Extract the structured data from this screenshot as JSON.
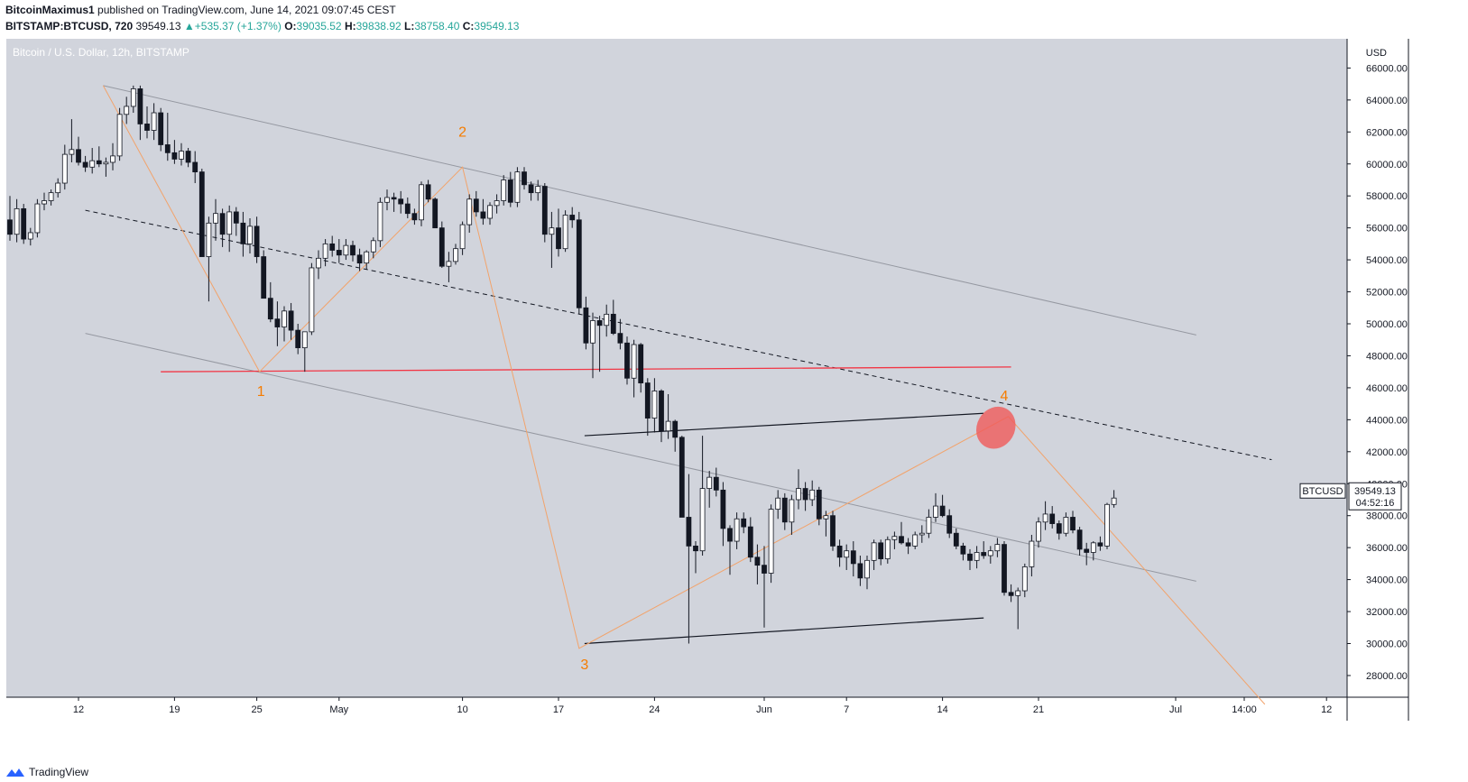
{
  "header": {
    "author": "BitcoinMaximus1",
    "published_text": "published on TradingView.com, June 14, 2021 09:07:45 CEST",
    "symbol": "BITSTAMP:BTCUSD, 720",
    "last": "39549.13",
    "change_arrow": "▲",
    "change": "+535.37 (+1.37%)",
    "o_label": "O:",
    "o": "39035.52",
    "h_label": "H:",
    "h": "39838.92",
    "l_label": "L:",
    "l": "38758.40",
    "c_label": "C:",
    "c": "39549.13"
  },
  "footer": {
    "brand": "TradingView",
    "logo_icon": "tradingview-logo-icon"
  },
  "colors": {
    "plot_bg": "#d1d4dc",
    "candle_up": "#ffffff",
    "candle_down": "#131722",
    "wick": "#131722",
    "channel": "#9598a1",
    "wave": "#f2a36b",
    "wave_label": "#f57c00",
    "support": "#f23645",
    "target_ellipse": "#f05a5a",
    "black_line": "#131722"
  },
  "chart_data": {
    "type": "candlestick",
    "title": "Bitcoin / U.S. Dollar, 12h, BITSTAMP",
    "currency_label": "USD",
    "ylim": [
      26200,
      67000
    ],
    "y_ticks": [
      28000,
      30000,
      32000,
      34000,
      36000,
      38000,
      40000,
      42000,
      44000,
      46000,
      48000,
      50000,
      52000,
      54000,
      56000,
      58000,
      60000,
      62000,
      64000,
      66000
    ],
    "x_ticks": [
      {
        "day": 12,
        "label": "12"
      },
      {
        "day": 19,
        "label": "19"
      },
      {
        "day": 25,
        "label": "25"
      },
      {
        "day": 31,
        "label": "May"
      },
      {
        "day": 40,
        "label": "10"
      },
      {
        "day": 47,
        "label": "17"
      },
      {
        "day": 54,
        "label": "24"
      },
      {
        "day": 62,
        "label": "Jun"
      },
      {
        "day": 68,
        "label": "7"
      },
      {
        "day": 75,
        "label": "14"
      },
      {
        "day": 82,
        "label": "21"
      },
      {
        "day": 92,
        "label": "Jul"
      },
      {
        "day": 97,
        "label": "14:00"
      },
      {
        "day": 103,
        "label": "12"
      }
    ],
    "price_tag": {
      "label": "BTCUSD",
      "value": "39549.13",
      "countdown": "04:52:16",
      "price": 39549
    },
    "wave_labels": [
      {
        "label": "1",
        "day": 25.3,
        "price": 45500
      },
      {
        "label": "2",
        "day": 40.0,
        "price": 61700
      },
      {
        "label": "3",
        "day": 48.9,
        "price": 28400
      },
      {
        "label": "4",
        "day": 79.5,
        "price": 45200
      }
    ],
    "candles_start_day": 7.0,
    "candle_step_days": 0.5,
    "candles": [
      [
        56500,
        58000,
        55200,
        55600
      ],
      [
        55600,
        57800,
        55100,
        57200
      ],
      [
        57200,
        57500,
        55000,
        55300
      ],
      [
        55300,
        56000,
        54900,
        55700
      ],
      [
        55700,
        57800,
        55400,
        57500
      ],
      [
        57500,
        58200,
        57100,
        57700
      ],
      [
        57700,
        58400,
        57400,
        58200
      ],
      [
        58200,
        59100,
        57900,
        58800
      ],
      [
        58800,
        61200,
        58400,
        60600
      ],
      [
        60600,
        62800,
        60100,
        60900
      ],
      [
        60900,
        61700,
        59900,
        60100
      ],
      [
        60100,
        60500,
        59500,
        59800
      ],
      [
        59800,
        61000,
        59400,
        60200
      ],
      [
        60200,
        61100,
        59800,
        60000
      ],
      [
        60000,
        60400,
        59200,
        60100
      ],
      [
        60100,
        61300,
        59600,
        60500
      ],
      [
        60500,
        63500,
        60200,
        63100
      ],
      [
        63100,
        64200,
        62500,
        63600
      ],
      [
        63600,
        64900,
        63200,
        64700
      ],
      [
        64700,
        64900,
        61500,
        62500
      ],
      [
        62500,
        63600,
        61600,
        62100
      ],
      [
        62100,
        63800,
        61500,
        63200
      ],
      [
        63200,
        63500,
        60800,
        61200
      ],
      [
        61200,
        63200,
        60200,
        60700
      ],
      [
        60700,
        61500,
        60000,
        60300
      ],
      [
        60300,
        61300,
        59900,
        60800
      ],
      [
        60800,
        61000,
        59800,
        60100
      ],
      [
        60100,
        60800,
        58800,
        59500
      ],
      [
        59500,
        59700,
        54200,
        54200
      ],
      [
        54200,
        56700,
        51400,
        56300
      ],
      [
        56300,
        57800,
        55200,
        56900
      ],
      [
        56900,
        57200,
        54800,
        55600
      ],
      [
        55600,
        57400,
        54500,
        57000
      ],
      [
        57000,
        57300,
        55500,
        56300
      ],
      [
        56300,
        57000,
        54200,
        55000
      ],
      [
        55000,
        56600,
        54400,
        56100
      ],
      [
        56100,
        56700,
        53800,
        54200
      ],
      [
        54200,
        54600,
        51600,
        51600
      ],
      [
        51600,
        52600,
        50100,
        50300
      ],
      [
        50300,
        51400,
        48600,
        49800
      ],
      [
        49800,
        51100,
        48900,
        50800
      ],
      [
        50800,
        51300,
        49000,
        49600
      ],
      [
        49600,
        50000,
        48100,
        48500
      ],
      [
        48500,
        49500,
        47000,
        49500
      ],
      [
        49500,
        53800,
        49300,
        53500
      ],
      [
        53500,
        54600,
        52800,
        54100
      ],
      [
        54100,
        55300,
        53600,
        55000
      ],
      [
        55000,
        55500,
        54200,
        54600
      ],
      [
        54600,
        55300,
        53800,
        54300
      ],
      [
        54300,
        55300,
        54000,
        54900
      ],
      [
        54900,
        55200,
        53900,
        54300
      ],
      [
        54300,
        54700,
        53300,
        53800
      ],
      [
        53800,
        54600,
        53400,
        54500
      ],
      [
        54500,
        55400,
        54100,
        55200
      ],
      [
        55200,
        57900,
        54800,
        57600
      ],
      [
        57600,
        58400,
        57100,
        57900
      ],
      [
        57900,
        58200,
        57000,
        57800
      ],
      [
        57800,
        58300,
        56900,
        57500
      ],
      [
        57500,
        57900,
        56600,
        56900
      ],
      [
        56900,
        57200,
        56200,
        56500
      ],
      [
        56500,
        58900,
        56100,
        58700
      ],
      [
        58700,
        59000,
        57600,
        57800
      ],
      [
        57800,
        57900,
        56000,
        56000
      ],
      [
        56000,
        56400,
        53500,
        53600
      ],
      [
        53600,
        54500,
        52600,
        53900
      ],
      [
        53900,
        55000,
        53700,
        54700
      ],
      [
        54700,
        56400,
        54300,
        56200
      ],
      [
        56200,
        58100,
        55700,
        57800
      ],
      [
        57800,
        58300,
        56700,
        57000
      ],
      [
        57000,
        57800,
        56200,
        56600
      ],
      [
        56600,
        57600,
        56200,
        57400
      ],
      [
        57400,
        58100,
        56900,
        57700
      ],
      [
        57700,
        59300,
        57400,
        59000
      ],
      [
        59000,
        59500,
        57300,
        57600
      ],
      [
        57600,
        59800,
        57300,
        59500
      ],
      [
        59500,
        59800,
        58400,
        58700
      ],
      [
        58700,
        58900,
        57700,
        58200
      ],
      [
        58200,
        59000,
        57700,
        58600
      ],
      [
        58600,
        58800,
        55100,
        55600
      ],
      [
        55600,
        57000,
        53500,
        56000
      ],
      [
        56000,
        57200,
        54200,
        54700
      ],
      [
        54700,
        57100,
        54500,
        56800
      ],
      [
        56800,
        57300,
        56000,
        56500
      ],
      [
        56500,
        57000,
        50600,
        51000
      ],
      [
        51000,
        51700,
        48400,
        48800
      ],
      [
        48800,
        50700,
        46600,
        50200
      ],
      [
        50200,
        50500,
        47000,
        49900
      ],
      [
        49900,
        51200,
        49200,
        50600
      ],
      [
        50600,
        51500,
        49300,
        49400
      ],
      [
        49400,
        50300,
        48400,
        48800
      ],
      [
        48800,
        49200,
        46200,
        46600
      ],
      [
        46600,
        49000,
        45400,
        48700
      ],
      [
        48700,
        48800,
        45700,
        46300
      ],
      [
        46300,
        46600,
        43000,
        44100
      ],
      [
        44100,
        46600,
        43200,
        45800
      ],
      [
        45800,
        45900,
        42600,
        43300
      ],
      [
        43300,
        45600,
        42800,
        43900
      ],
      [
        43900,
        44000,
        42000,
        42900
      ],
      [
        42900,
        43000,
        37900,
        37900
      ],
      [
        37900,
        40600,
        30000,
        36100
      ],
      [
        36100,
        36400,
        34400,
        35800
      ],
      [
        35800,
        43000,
        35500,
        39700
      ],
      [
        39700,
        40800,
        38500,
        40400
      ],
      [
        40400,
        41000,
        39200,
        39600
      ],
      [
        39600,
        40100,
        36100,
        37200
      ],
      [
        37200,
        37400,
        34300,
        36400
      ],
      [
        36400,
        38200,
        35900,
        37800
      ],
      [
        37800,
        38200,
        36900,
        37300
      ],
      [
        37300,
        37900,
        35100,
        35400
      ],
      [
        35400,
        36200,
        33700,
        34900
      ],
      [
        34900,
        36100,
        31000,
        34400
      ],
      [
        34400,
        38700,
        33800,
        38400
      ],
      [
        38400,
        39600,
        37800,
        39100
      ],
      [
        39100,
        39400,
        37100,
        37600
      ],
      [
        37600,
        39300,
        36800,
        39000
      ],
      [
        39000,
        40900,
        38400,
        39700
      ],
      [
        39700,
        40100,
        38300,
        39000
      ],
      [
        39000,
        40200,
        38600,
        39600
      ],
      [
        39600,
        39800,
        37400,
        37800
      ],
      [
        37800,
        38300,
        36700,
        38000
      ],
      [
        38000,
        38300,
        35800,
        36100
      ],
      [
        36100,
        36500,
        34800,
        35400
      ],
      [
        35400,
        36200,
        34600,
        35800
      ],
      [
        35800,
        36400,
        34200,
        35000
      ],
      [
        35000,
        35500,
        33600,
        34100
      ],
      [
        34100,
        35500,
        33400,
        35200
      ],
      [
        35200,
        36500,
        34600,
        36300
      ],
      [
        36300,
        36500,
        34900,
        35300
      ],
      [
        35300,
        36700,
        35000,
        36500
      ],
      [
        36500,
        37000,
        35900,
        36700
      ],
      [
        36700,
        37600,
        36200,
        36300
      ],
      [
        36300,
        36600,
        35600,
        36100
      ],
      [
        36100,
        37000,
        35900,
        36800
      ],
      [
        36800,
        37400,
        36300,
        36900
      ],
      [
        36900,
        38400,
        36600,
        37900
      ],
      [
        37900,
        39400,
        37600,
        38600
      ],
      [
        38600,
        39300,
        37900,
        38000
      ],
      [
        38000,
        38400,
        36600,
        36900
      ],
      [
        36900,
        37200,
        35900,
        36100
      ],
      [
        36100,
        36300,
        35200,
        35600
      ],
      [
        35600,
        35900,
        34600,
        35200
      ],
      [
        35200,
        36100,
        34700,
        35700
      ],
      [
        35700,
        36400,
        35300,
        35500
      ],
      [
        35500,
        36100,
        35000,
        35800
      ],
      [
        35800,
        36600,
        35400,
        36200
      ],
      [
        36200,
        36400,
        33000,
        33200
      ],
      [
        33200,
        33700,
        32600,
        33000
      ],
      [
        33000,
        33500,
        30900,
        33300
      ],
      [
        33300,
        35000,
        32900,
        34800
      ],
      [
        34800,
        36800,
        34200,
        36400
      ],
      [
        36400,
        37900,
        36000,
        37600
      ],
      [
        37600,
        38900,
        37100,
        38100
      ],
      [
        38100,
        38600,
        37200,
        37500
      ],
      [
        37500,
        37700,
        36500,
        36900
      ],
      [
        36900,
        38200,
        36700,
        37900
      ],
      [
        37900,
        38300,
        36900,
        37100
      ],
      [
        37100,
        37300,
        35500,
        35900
      ],
      [
        35900,
        36300,
        34900,
        35700
      ],
      [
        35700,
        36400,
        35200,
        36300
      ],
      [
        36300,
        36700,
        35800,
        36100
      ],
      [
        36100,
        38800,
        35900,
        38700
      ],
      [
        38700,
        39600,
        38500,
        39100
      ]
    ],
    "channel_upper": [
      [
        13.8,
        64900
      ],
      [
        93.5,
        49300
      ]
    ],
    "channel_lower": [
      [
        12.5,
        49400
      ],
      [
        93.5,
        33900
      ]
    ],
    "channel_mid_dashed": [
      [
        12.5,
        57100
      ],
      [
        99.0,
        41500
      ]
    ],
    "support_red": [
      [
        18.0,
        47000
      ],
      [
        80.0,
        47300
      ]
    ],
    "triangle_top": [
      [
        48.9,
        43000
      ],
      [
        78.0,
        44400
      ]
    ],
    "triangle_bottom": [
      [
        48.9,
        30000
      ],
      [
        78.0,
        31600
      ]
    ],
    "wave_path": [
      [
        13.8,
        64900
      ],
      [
        25.2,
        47000
      ],
      [
        40.0,
        59800
      ],
      [
        48.5,
        29700
      ],
      [
        79.8,
        44200
      ],
      [
        98.5,
        26200
      ]
    ],
    "target_ellipse": {
      "day": 78.3,
      "price": 43500
    }
  }
}
